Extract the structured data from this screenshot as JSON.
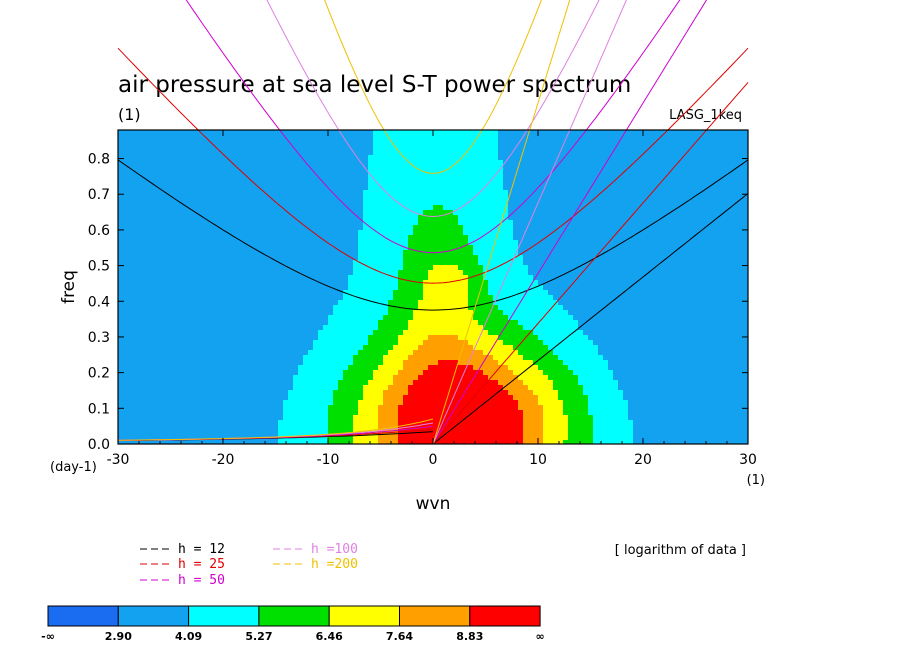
{
  "chart_data": {
    "type": "heatmap",
    "title": "air pressure at sea level S-T power spectrum",
    "subtitle_left": "(1)",
    "subtitle_right": "LASG_1keq",
    "xlabel": "wvn",
    "ylabel": "freq",
    "x_unit_label": "(1)",
    "y_unit_label": "(day-1)",
    "xlim": [
      -30,
      30
    ],
    "ylim": [
      0,
      0.88
    ],
    "x_ticks": [
      -30,
      -20,
      -10,
      0,
      10,
      20,
      30
    ],
    "x_tick_labels": [
      "-30",
      "-20",
      "-10",
      "0",
      "10",
      "20",
      "30"
    ],
    "y_ticks": [
      0,
      0.1,
      0.2,
      0.3,
      0.4,
      0.5,
      0.6,
      0.7,
      0.8
    ],
    "y_tick_labels": [
      "0.0",
      "0.1",
      "0.2",
      "0.3",
      "0.4",
      "0.5",
      "0.6",
      "0.7",
      "0.8"
    ],
    "data_note": "[ logarithm of data ]",
    "levels": [
      2.9,
      4.09,
      5.27,
      6.46,
      7.64,
      8.83
    ],
    "colorbar_labels": [
      "-∞",
      "2.90",
      "4.09",
      "5.27",
      "6.46",
      "7.64",
      "8.83",
      "∞"
    ],
    "colors": [
      "#1a6cf0",
      "#12a2f0",
      "#00ffff",
      "#00e000",
      "#ffff00",
      "#ffa000",
      "#ff0000"
    ],
    "peak": {
      "wvn": 3,
      "freq": 0.05,
      "value": 9.2
    },
    "dispersion_curves": [
      {
        "name": "h = 12",
        "value": 12,
        "color": "#000000"
      },
      {
        "name": "h = 25",
        "value": 25,
        "color": "#e00000"
      },
      {
        "name": "h = 50",
        "value": 50,
        "color": "#d000d0"
      },
      {
        "name": "h =100",
        "value": 100,
        "color": "#e080e0"
      },
      {
        "name": "h =200",
        "value": 200,
        "color": "#f0c000"
      }
    ]
  }
}
